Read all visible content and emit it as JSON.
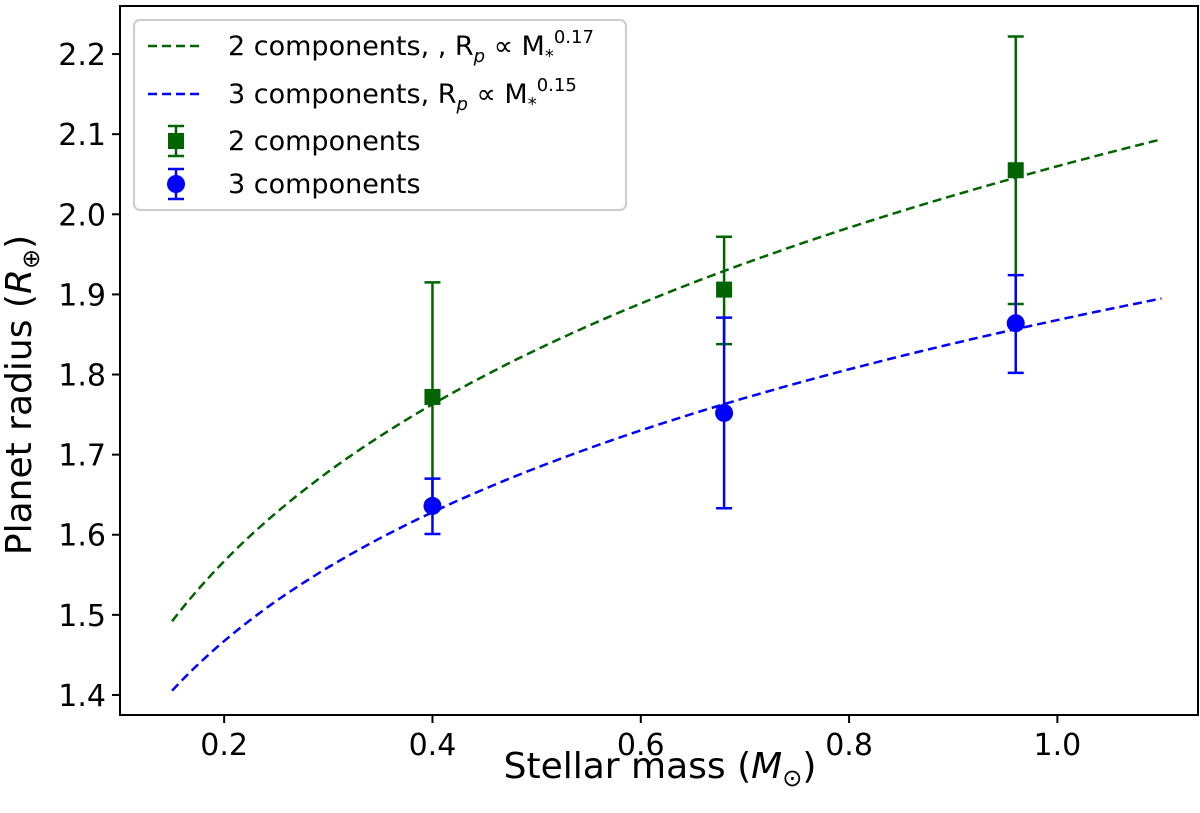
{
  "chart_data": {
    "type": "scatter",
    "xlabel": "Stellar mass (",
    "xlabel_sym": "M",
    "xlabel_sub": "⊙",
    "xlabel_end": ")",
    "ylabel": "Planet radius (",
    "ylabel_sym": "R",
    "ylabel_sub": "⊕",
    "ylabel_end": ")",
    "xlim": [
      0.1,
      1.135
    ],
    "ylim": [
      1.375,
      2.26
    ],
    "x_ticks": [
      0.2,
      0.4,
      0.6,
      0.8,
      1.0
    ],
    "x_tick_labels": [
      "0.2",
      "0.4",
      "0.6",
      "0.8",
      "1.0"
    ],
    "y_ticks": [
      1.4,
      1.5,
      1.6,
      1.7,
      1.8,
      1.9,
      2.0,
      2.1,
      2.2
    ],
    "y_tick_labels": [
      "1.4",
      "1.5",
      "1.6",
      "1.7",
      "1.8",
      "1.9",
      "2.0",
      "2.1",
      "2.2"
    ],
    "fits": [
      {
        "name": "2 components, , R_p ∝ M*^0.17",
        "color": "#006400",
        "coef": 2.06,
        "exponent": 0.17,
        "x_range": [
          0.15,
          1.1
        ],
        "legend": {
          "label_a": "2 components, , R",
          "sub": "p",
          "label_b": " ∝ M",
          "sub2": "*",
          "sup": "0.17"
        }
      },
      {
        "name": "3 components, R_p ∝ M*^0.15",
        "color": "#0000ff",
        "coef": 1.868,
        "exponent": 0.15,
        "x_range": [
          0.15,
          1.1
        ],
        "legend": {
          "label_a": "3 components, R",
          "sub": "p",
          "label_b": " ∝ M",
          "sub2": "*",
          "sup": "0.15"
        }
      }
    ],
    "series": [
      {
        "name": "2 components",
        "marker": "square",
        "color": "#006400",
        "points": [
          {
            "x": 0.4,
            "y": 1.772,
            "err_low": 1.632,
            "err_high": 1.915
          },
          {
            "x": 0.68,
            "y": 1.906,
            "err_low": 1.838,
            "err_high": 1.972
          },
          {
            "x": 0.96,
            "y": 2.055,
            "err_low": 1.888,
            "err_high": 2.222
          }
        ]
      },
      {
        "name": "3 components",
        "marker": "circle",
        "color": "#0000ff",
        "points": [
          {
            "x": 0.4,
            "y": 1.636,
            "err_low": 1.601,
            "err_high": 1.67
          },
          {
            "x": 0.68,
            "y": 1.752,
            "err_low": 1.633,
            "err_high": 1.871
          },
          {
            "x": 0.96,
            "y": 1.864,
            "err_low": 1.802,
            "err_high": 1.924
          }
        ]
      }
    ],
    "legend_position": "upper-left"
  }
}
